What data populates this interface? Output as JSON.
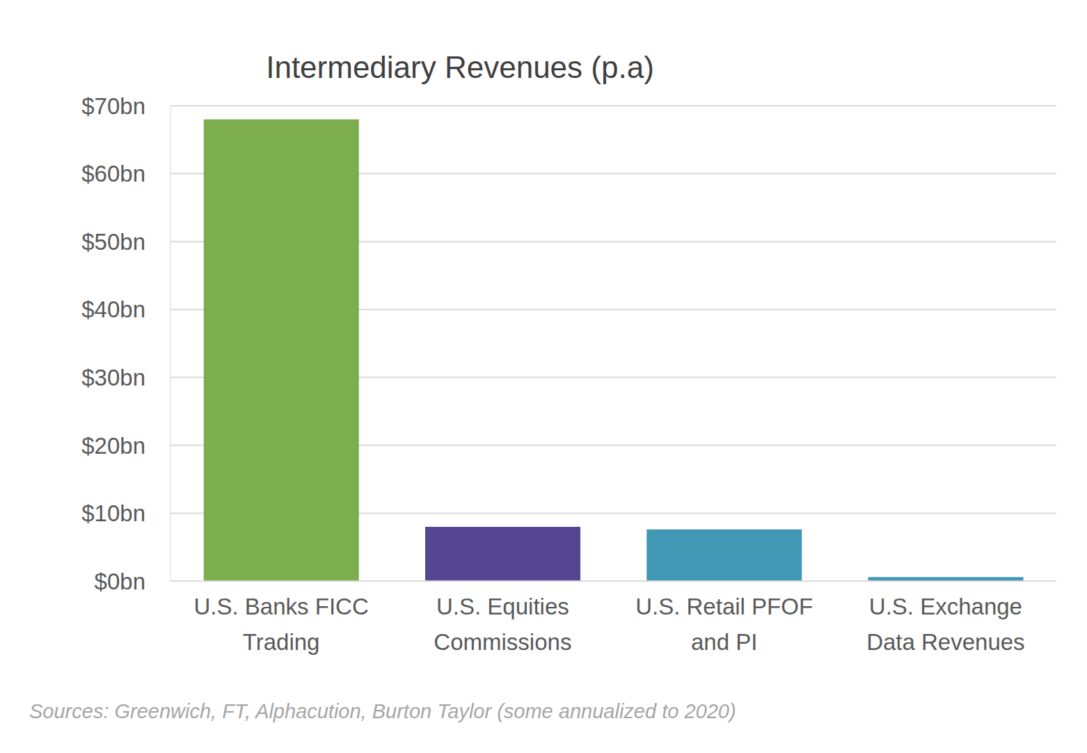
{
  "chart_data": {
    "type": "bar",
    "title": "Intermediary Revenues (p.a)",
    "categories": [
      "U.S. Banks FICC Trading",
      "U.S. Equities Commissions",
      "U.S. Retail PFOF and PI",
      "U.S. Exchange Data Revenues"
    ],
    "values": [
      68,
      8,
      7.6,
      0.6
    ],
    "colors": [
      "#7cae4f",
      "#564593",
      "#4198b5",
      "#4198b5"
    ],
    "ylim": [
      0,
      70
    ],
    "yticks": [
      {
        "value": 0,
        "label": "$0bn"
      },
      {
        "value": 10,
        "label": "$10bn"
      },
      {
        "value": 20,
        "label": "$20bn"
      },
      {
        "value": 30,
        "label": "$30bn"
      },
      {
        "value": 40,
        "label": "$40bn"
      },
      {
        "value": 50,
        "label": "$50bn"
      },
      {
        "value": 60,
        "label": "$60bn"
      },
      {
        "value": 70,
        "label": "$70bn"
      }
    ],
    "grid": true,
    "annotations": [
      "Sources: Greenwich, FT, Alphacution, Burton Taylor (some annualized to 2020)"
    ]
  }
}
